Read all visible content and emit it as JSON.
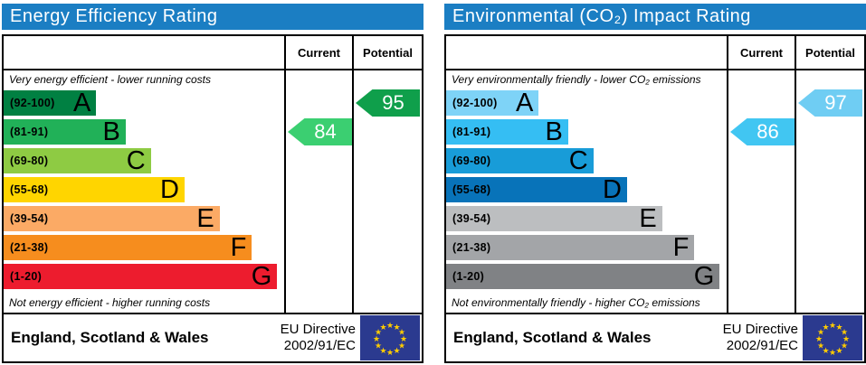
{
  "colors": {
    "header_bg": "#1b7ec3",
    "border": "#000000",
    "flag_bg": "#2b3a8f",
    "flag_star": "#ffcc00"
  },
  "panels": [
    {
      "title": "Energy Efficiency Rating",
      "columns": {
        "current": "Current",
        "potential": "Potential"
      },
      "caption_top": "Very energy efficient - lower running costs",
      "caption_bottom": "Not energy efficient - higher running costs",
      "bands": [
        {
          "letter": "A",
          "range": "(92-100)",
          "color": "#008042",
          "width_pct": 33
        },
        {
          "letter": "B",
          "range": "(81-91)",
          "color": "#21b158",
          "width_pct": 43.5
        },
        {
          "letter": "C",
          "range": "(69-80)",
          "color": "#8ecb43",
          "width_pct": 52.5
        },
        {
          "letter": "D",
          "range": "(55-68)",
          "color": "#ffd500",
          "width_pct": 64.5
        },
        {
          "letter": "E",
          "range": "(39-54)",
          "color": "#fbaa65",
          "width_pct": 77
        },
        {
          "letter": "F",
          "range": "(21-38)",
          "color": "#f68d1e",
          "width_pct": 88.5
        },
        {
          "letter": "G",
          "range": "(1-20)",
          "color": "#ed1c2e",
          "width_pct": 97.5
        }
      ],
      "current": {
        "value": "84",
        "band_index": 1,
        "color": "#3bcf71"
      },
      "potential": {
        "value": "95",
        "band_index": 0,
        "color": "#0f9f4b"
      },
      "footer": {
        "region": "England, Scotland & Wales",
        "directive_line1": "EU Directive",
        "directive_line2": "2002/91/EC"
      }
    },
    {
      "title": "Environmental (CO₂) Impact Rating",
      "columns": {
        "current": "Current",
        "potential": "Potential"
      },
      "caption_top": "Very environmentally friendly - lower CO₂ emissions",
      "caption_bottom": "Not environmentally friendly - higher CO₂ emissions",
      "bands": [
        {
          "letter": "A",
          "range": "(92-100)",
          "color": "#7ed3f7",
          "width_pct": 33
        },
        {
          "letter": "B",
          "range": "(81-91)",
          "color": "#35bef3",
          "width_pct": 43.5
        },
        {
          "letter": "C",
          "range": "(69-80)",
          "color": "#189cd8",
          "width_pct": 52.5
        },
        {
          "letter": "D",
          "range": "(55-68)",
          "color": "#0873b9",
          "width_pct": 64.5
        },
        {
          "letter": "E",
          "range": "(39-54)",
          "color": "#bcbec0",
          "width_pct": 77
        },
        {
          "letter": "F",
          "range": "(21-38)",
          "color": "#a3a5a8",
          "width_pct": 88.5
        },
        {
          "letter": "G",
          "range": "(1-20)",
          "color": "#808285",
          "width_pct": 97.5
        }
      ],
      "current": {
        "value": "86",
        "band_index": 1,
        "color": "#41c6f2"
      },
      "potential": {
        "value": "97",
        "band_index": 0,
        "color": "#6fcdf3"
      },
      "footer": {
        "region": "England, Scotland & Wales",
        "directive_line1": "EU Directive",
        "directive_line2": "2002/91/EC"
      }
    }
  ],
  "chart_data": [
    {
      "type": "bar",
      "title": "Energy Efficiency Rating",
      "categories": [
        "A (92-100)",
        "B (81-91)",
        "C (69-80)",
        "D (55-68)",
        "E (39-54)",
        "F (21-38)",
        "G (1-20)"
      ],
      "band_colors": [
        "#008042",
        "#21b158",
        "#8ecb43",
        "#ffd500",
        "#fbaa65",
        "#f68d1e",
        "#ed1c2e"
      ],
      "current": 84,
      "current_band": "B",
      "potential": 95,
      "potential_band": "A",
      "top_annotation": "Very energy efficient - lower running costs",
      "bottom_annotation": "Not energy efficient - higher running costs",
      "footer": "England, Scotland & Wales",
      "directive": "EU Directive 2002/91/EC",
      "value_range": [
        1,
        100
      ]
    },
    {
      "type": "bar",
      "title": "Environmental (CO₂) Impact Rating",
      "categories": [
        "A (92-100)",
        "B (81-91)",
        "C (69-80)",
        "D (55-68)",
        "E (39-54)",
        "F (21-38)",
        "G (1-20)"
      ],
      "band_colors": [
        "#7ed3f7",
        "#35bef3",
        "#189cd8",
        "#0873b9",
        "#bcbec0",
        "#a3a5a8",
        "#808285"
      ],
      "current": 86,
      "current_band": "B",
      "potential": 97,
      "potential_band": "A",
      "top_annotation": "Very environmentally friendly - lower CO₂ emissions",
      "bottom_annotation": "Not environmentally friendly - higher CO₂ emissions",
      "footer": "England, Scotland & Wales",
      "directive": "EU Directive 2002/91/EC",
      "value_range": [
        1,
        100
      ]
    }
  ]
}
